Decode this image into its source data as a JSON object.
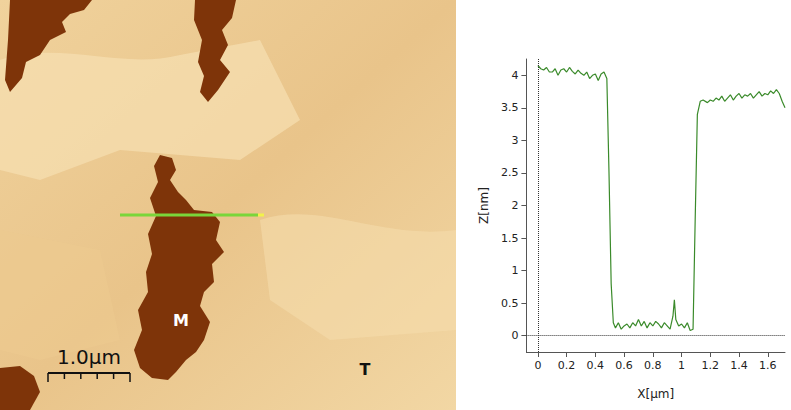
{
  "image": {
    "scale_bar": "1.0µm",
    "labels": [
      "M",
      "T"
    ]
  },
  "chart_data": {
    "type": "line",
    "x_label": "X[µm]",
    "y_label": "Z[nm]",
    "color": "#3a8a2a",
    "grid": false,
    "x": [
      0,
      0.02,
      0.04,
      0.06,
      0.08,
      0.1,
      0.12,
      0.14,
      0.16,
      0.18,
      0.2,
      0.22,
      0.24,
      0.26,
      0.28,
      0.3,
      0.32,
      0.34,
      0.36,
      0.38,
      0.4,
      0.42,
      0.44,
      0.46,
      0.48,
      0.495,
      0.51,
      0.525,
      0.54,
      0.56,
      0.58,
      0.6,
      0.62,
      0.64,
      0.66,
      0.68,
      0.7,
      0.72,
      0.74,
      0.76,
      0.78,
      0.8,
      0.82,
      0.84,
      0.86,
      0.88,
      0.9,
      0.92,
      0.94,
      0.95,
      0.96,
      0.98,
      1.0,
      1.02,
      1.04,
      1.06,
      1.08,
      1.095,
      1.11,
      1.13,
      1.15,
      1.18,
      1.2,
      1.22,
      1.24,
      1.26,
      1.28,
      1.3,
      1.32,
      1.34,
      1.36,
      1.38,
      1.4,
      1.42,
      1.44,
      1.46,
      1.48,
      1.5,
      1.52,
      1.54,
      1.56,
      1.58,
      1.6,
      1.62,
      1.64,
      1.66,
      1.68,
      1.7,
      1.72
    ],
    "values": [
      4.15,
      4.1,
      4.08,
      4.12,
      4.05,
      4.05,
      4.1,
      4.0,
      4.08,
      4.1,
      4.05,
      4.12,
      4.06,
      4.02,
      4.08,
      4.03,
      4.0,
      4.05,
      3.95,
      4.0,
      4.02,
      3.92,
      4.02,
      4.05,
      3.95,
      2.5,
      0.8,
      0.2,
      0.12,
      0.2,
      0.1,
      0.15,
      0.18,
      0.12,
      0.2,
      0.15,
      0.25,
      0.15,
      0.22,
      0.12,
      0.2,
      0.15,
      0.22,
      0.18,
      0.12,
      0.2,
      0.15,
      0.1,
      0.3,
      0.55,
      0.25,
      0.15,
      0.18,
      0.12,
      0.2,
      0.08,
      0.1,
      1.8,
      3.4,
      3.6,
      3.62,
      3.58,
      3.62,
      3.6,
      3.65,
      3.62,
      3.68,
      3.6,
      3.65,
      3.7,
      3.62,
      3.68,
      3.72,
      3.65,
      3.7,
      3.68,
      3.72,
      3.65,
      3.7,
      3.75,
      3.68,
      3.72,
      3.7,
      3.76,
      3.72,
      3.78,
      3.72,
      3.6,
      3.5
    ],
    "xlim": [
      -0.08,
      1.72
    ],
    "ylim": [
      -0.25,
      4.25
    ],
    "xticks": [
      0,
      0.2,
      0.4,
      0.6,
      0.8,
      1,
      1.2,
      1.4,
      1.6
    ],
    "yticks": [
      0,
      0.5,
      1,
      1.5,
      2,
      2.5,
      3,
      3.5,
      4
    ]
  }
}
